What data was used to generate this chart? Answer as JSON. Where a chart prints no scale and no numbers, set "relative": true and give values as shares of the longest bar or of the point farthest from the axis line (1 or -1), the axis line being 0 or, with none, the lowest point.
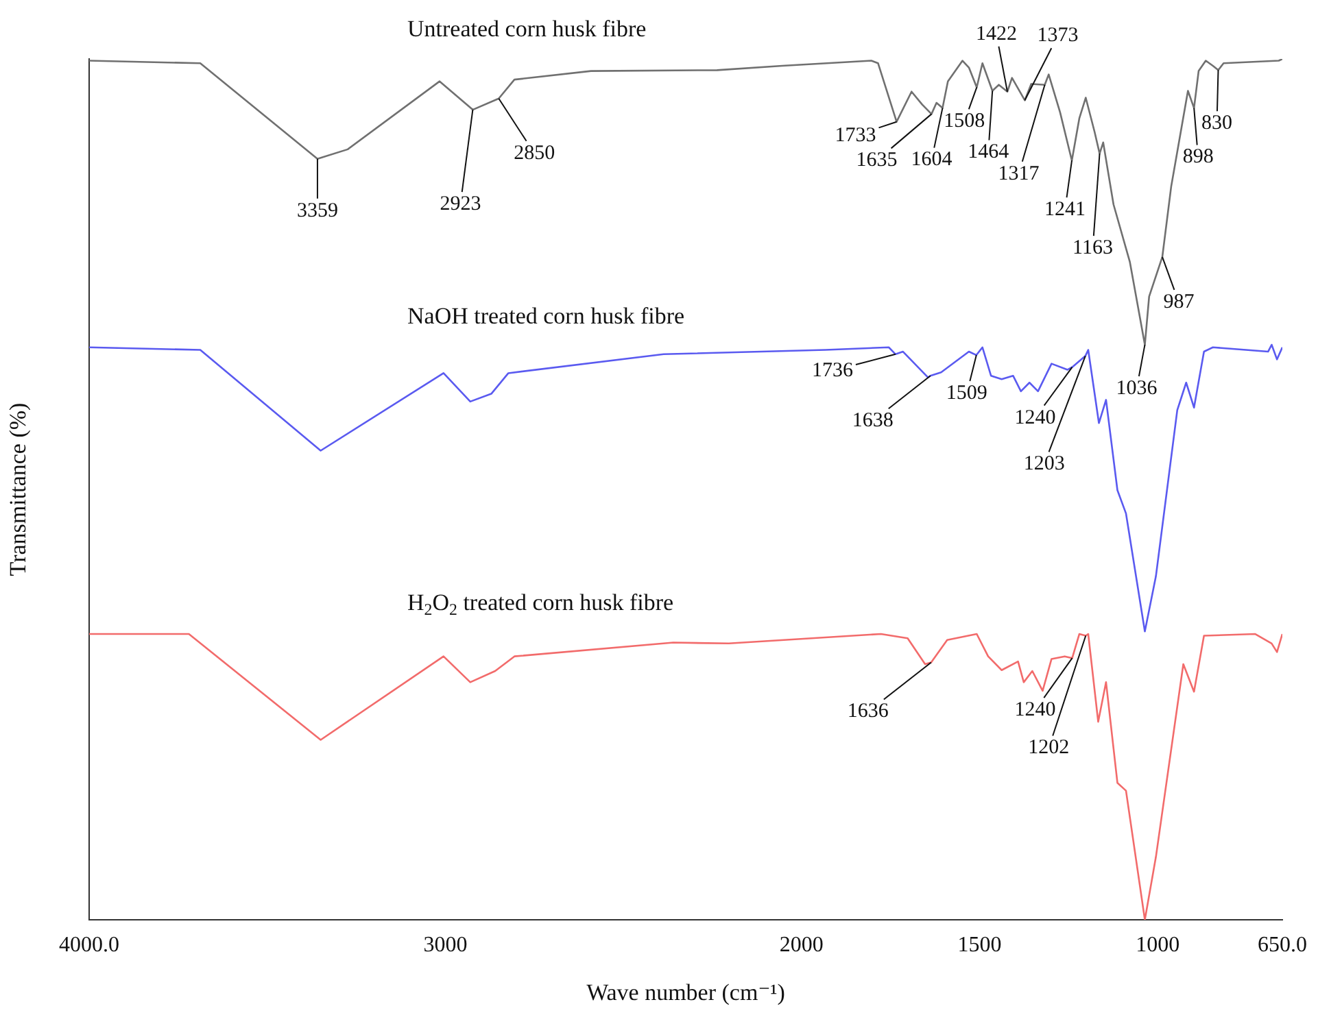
{
  "chart_data": {
    "type": "line",
    "relative": true,
    "xlabel": "Wave number (cm⁻¹)",
    "ylabel": "Transmittance (%)",
    "xlim": [
      4000,
      650
    ],
    "xticks": [
      {
        "value": 4000,
        "label": "4000.0"
      },
      3000,
      2000,
      1500,
      1000,
      {
        "value": 650,
        "label": "650.0"
      }
    ],
    "legend": false,
    "grid": false,
    "series": [
      {
        "name": "Untreated corn husk fibre",
        "color": "#707070",
        "x": [
          4000,
          3688,
          3359,
          3274,
          3016,
          2923,
          2850,
          2806,
          2591,
          2237,
          2054,
          1804,
          1785,
          1733,
          1691,
          1661,
          1635,
          1621,
          1604,
          1589,
          1548,
          1530,
          1508,
          1492,
          1464,
          1446,
          1422,
          1409,
          1373,
          1355,
          1317,
          1306,
          1274,
          1241,
          1220,
          1202,
          1177,
          1163,
          1153,
          1124,
          1078,
          1036,
          1024,
          987,
          962,
          915,
          898,
          885,
          865,
          845,
          830,
          815,
          660,
          650
        ],
        "values": [
          0.998,
          0.995,
          0.884,
          0.895,
          0.974,
          0.941,
          0.954,
          0.976,
          0.986,
          0.987,
          0.992,
          0.998,
          0.995,
          0.927,
          0.962,
          0.947,
          0.936,
          0.949,
          0.943,
          0.974,
          0.998,
          0.99,
          0.967,
          0.995,
          0.963,
          0.97,
          0.962,
          0.978,
          0.952,
          0.971,
          0.97,
          0.982,
          0.938,
          0.882,
          0.931,
          0.955,
          0.915,
          0.89,
          0.903,
          0.831,
          0.764,
          0.668,
          0.724,
          0.77,
          0.852,
          0.963,
          0.943,
          0.986,
          0.998,
          0.992,
          0.987,
          0.995,
          0.998,
          1.0
        ]
      },
      {
        "name": "NaOH treated corn husk fibre",
        "color": "#5a5af0",
        "x": [
          4000,
          3688,
          3350,
          3005,
          2930,
          2871,
          2823,
          2387,
          1933,
          1755,
          1736,
          1715,
          1645,
          1638,
          1608,
          1530,
          1509,
          1492,
          1468,
          1438,
          1406,
          1384,
          1360,
          1336,
          1298,
          1253,
          1240,
          1203,
          1195,
          1165,
          1145,
          1113,
          1089,
          1036,
          1005,
          945,
          920,
          898,
          870,
          845,
          690,
          680,
          665,
          650
        ],
        "values": [
          0.665,
          0.662,
          0.545,
          0.635,
          0.602,
          0.611,
          0.635,
          0.657,
          0.662,
          0.665,
          0.657,
          0.66,
          0.63,
          0.632,
          0.636,
          0.66,
          0.656,
          0.665,
          0.632,
          0.628,
          0.632,
          0.614,
          0.624,
          0.614,
          0.646,
          0.639,
          0.642,
          0.655,
          0.662,
          0.577,
          0.604,
          0.499,
          0.472,
          0.335,
          0.399,
          0.592,
          0.624,
          0.595,
          0.66,
          0.665,
          0.66,
          0.668,
          0.651,
          0.665
        ]
      },
      {
        "name": "H$_{2}$O$_{2}$ treated corn husk fibre",
        "color": "#f26b6b",
        "x": [
          4000,
          3720,
          3350,
          3005,
          2930,
          2860,
          2806,
          2360,
          2204,
          1777,
          1702,
          1653,
          1636,
          1591,
          1508,
          1476,
          1438,
          1392,
          1376,
          1352,
          1323,
          1298,
          1261,
          1240,
          1220,
          1202,
          1195,
          1167,
          1145,
          1113,
          1089,
          1036,
          1005,
          928,
          898,
          870,
          726,
          680,
          665,
          650
        ],
        "values": [
          0.332,
          0.332,
          0.209,
          0.306,
          0.276,
          0.289,
          0.306,
          0.322,
          0.321,
          0.332,
          0.327,
          0.297,
          0.299,
          0.325,
          0.332,
          0.306,
          0.29,
          0.3,
          0.276,
          0.289,
          0.266,
          0.303,
          0.306,
          0.304,
          0.332,
          0.33,
          0.332,
          0.23,
          0.276,
          0.159,
          0.15,
          0.0,
          0.073,
          0.297,
          0.265,
          0.33,
          0.332,
          0.321,
          0.311,
          0.332
        ]
      }
    ],
    "annotations": [
      {
        "text": "3359",
        "x": 3359,
        "y": 0.884
      },
      {
        "text": "2923",
        "x": 2923,
        "y": 0.941
      },
      {
        "text": "2850",
        "x": 2850,
        "y": 0.954
      },
      {
        "text": "1733",
        "x": 1733,
        "y": 0.927
      },
      {
        "text": "1635",
        "x": 1635,
        "y": 0.936
      },
      {
        "text": "1604",
        "x": 1604,
        "y": 0.943
      },
      {
        "text": "1508",
        "x": 1508,
        "y": 0.967
      },
      {
        "text": "1464",
        "x": 1464,
        "y": 0.963
      },
      {
        "text": "1422",
        "x": 1422,
        "y": 0.962
      },
      {
        "text": "1373",
        "x": 1373,
        "y": 0.952
      },
      {
        "text": "1317",
        "x": 1317,
        "y": 0.97
      },
      {
        "text": "1241",
        "x": 1241,
        "y": 0.882
      },
      {
        "text": "1163",
        "x": 1163,
        "y": 0.89
      },
      {
        "text": "987",
        "x": 987,
        "y": 0.77
      },
      {
        "text": "1036",
        "x": 1036,
        "y": 0.668
      },
      {
        "text": "898",
        "x": 898,
        "y": 0.943
      },
      {
        "text": "830",
        "x": 830,
        "y": 0.987
      },
      {
        "text": "1736",
        "x": 1736,
        "y": 0.657
      },
      {
        "text": "1638",
        "x": 1638,
        "y": 0.632
      },
      {
        "text": "1509",
        "x": 1509,
        "y": 0.656
      },
      {
        "text": "1240",
        "x": 1240,
        "y": 0.642
      },
      {
        "text": "1203",
        "x": 1203,
        "y": 0.655
      },
      {
        "text": "1636",
        "x": 1636,
        "y": 0.299
      },
      {
        "text": "1240",
        "x": 1240,
        "y": 0.304
      },
      {
        "text": "1202",
        "x": 1202,
        "y": 0.33
      }
    ]
  }
}
